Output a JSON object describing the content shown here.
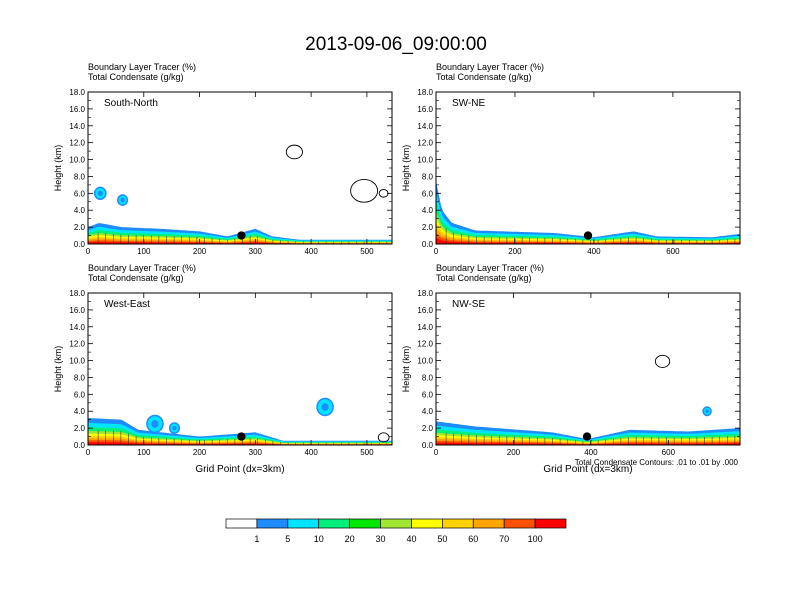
{
  "title": "2013-09-06_09:00:00",
  "footnote": "Total Condensate Contours: .01 to .01 by .000",
  "colorbar": {
    "colors": [
      "#ffffff",
      "#1e8cff",
      "#00e5ff",
      "#00f07c",
      "#00e600",
      "#a0e632",
      "#ffff00",
      "#ffd200",
      "#ffa500",
      "#ff5000",
      "#ff0000"
    ],
    "labels": [
      "1",
      "5",
      "10",
      "20",
      "30",
      "40",
      "50",
      "60",
      "70",
      "100"
    ]
  },
  "chart_data": [
    {
      "type": "contour",
      "panel_label": "South-North",
      "subtitle_1": "Boundary Layer Tracer   (%)",
      "subtitle_2": "Total Condensate   (g/kg)",
      "ylabel": "Height (km)",
      "xlabel": "",
      "xlim": [
        0,
        545
      ],
      "xticks": [
        0,
        100,
        200,
        300,
        400,
        500
      ],
      "ylim": [
        0,
        18
      ],
      "yticks": [
        "0.0",
        "2.0",
        "4.0",
        "6.0",
        "8.0",
        "10.0",
        "12.0",
        "14.0",
        "16.0",
        "18.0"
      ],
      "marker_point": [
        275,
        1.0
      ],
      "profile": [
        [
          0,
          2.0
        ],
        [
          20,
          2.5
        ],
        [
          60,
          2.0
        ],
        [
          130,
          1.8
        ],
        [
          200,
          1.5
        ],
        [
          250,
          0.9
        ],
        [
          300,
          1.8
        ],
        [
          330,
          0.9
        ],
        [
          380,
          0.5
        ],
        [
          545,
          0.5
        ]
      ],
      "blobs": [
        [
          22,
          6.0,
          0.7
        ],
        [
          62,
          5.2,
          0.6
        ]
      ],
      "contours": [
        [
          370,
          10.9,
          0.9
        ],
        [
          495,
          6.3,
          1.5
        ],
        [
          530,
          6.0,
          0.5
        ]
      ]
    },
    {
      "type": "contour",
      "panel_label": "SW-NE",
      "subtitle_1": "Boundary Layer Tracer   (%)",
      "subtitle_2": "Total Condensate   (g/kg)",
      "ylabel": "Height (km)",
      "xlabel": "",
      "xlim": [
        0,
        770
      ],
      "xticks": [
        0,
        200,
        400,
        600
      ],
      "ylim": [
        0,
        18
      ],
      "yticks": [
        "0.0",
        "2.0",
        "4.0",
        "6.0",
        "8.0",
        "10.0",
        "12.0",
        "14.0",
        "16.0",
        "18.0"
      ],
      "marker_point": [
        385,
        1.0
      ],
      "profile": [
        [
          0,
          7.5
        ],
        [
          15,
          4.0
        ],
        [
          40,
          2.5
        ],
        [
          100,
          1.6
        ],
        [
          300,
          1.3
        ],
        [
          400,
          0.8
        ],
        [
          500,
          1.5
        ],
        [
          560,
          0.9
        ],
        [
          700,
          0.8
        ],
        [
          770,
          1.2
        ]
      ],
      "blobs": [],
      "contours": []
    },
    {
      "type": "contour",
      "panel_label": "West-East",
      "subtitle_1": "Boundary Layer Tracer   (%)",
      "subtitle_2": "Total Condensate   (g/kg)",
      "ylabel": "Height (km)",
      "xlabel": "Grid Point (dx=3km)",
      "xlim": [
        0,
        545
      ],
      "xticks": [
        0,
        100,
        200,
        300,
        400,
        500
      ],
      "ylim": [
        0,
        18
      ],
      "yticks": [
        "0.0",
        "2.0",
        "4.0",
        "6.0",
        "8.0",
        "10.0",
        "12.0",
        "14.0",
        "16.0",
        "18.0"
      ],
      "marker_point": [
        275,
        1.0
      ],
      "profile": [
        [
          0,
          3.2
        ],
        [
          60,
          3.0
        ],
        [
          90,
          1.8
        ],
        [
          200,
          1.0
        ],
        [
          300,
          1.5
        ],
        [
          350,
          0.5
        ],
        [
          545,
          0.5
        ]
      ],
      "blobs": [
        [
          120,
          2.5,
          1.0
        ],
        [
          155,
          2.0,
          0.6
        ],
        [
          425,
          4.5,
          1.0
        ]
      ],
      "contours": [
        [
          530,
          0.9,
          0.6
        ]
      ]
    },
    {
      "type": "contour",
      "panel_label": "NW-SE",
      "subtitle_1": "Boundary Layer Tracer   (%)",
      "subtitle_2": "Total Condensate   (g/kg)",
      "ylabel": "Height (km)",
      "xlabel": "Grid Point (dx=3km)",
      "xlim": [
        0,
        785
      ],
      "xticks": [
        0,
        200,
        400,
        600
      ],
      "ylim": [
        0,
        18
      ],
      "yticks": [
        "0.0",
        "2.0",
        "4.0",
        "6.0",
        "8.0",
        "10.0",
        "12.0",
        "14.0",
        "16.0",
        "18.0"
      ],
      "marker_point": [
        390,
        1.0
      ],
      "profile": [
        [
          0,
          2.8
        ],
        [
          100,
          2.2
        ],
        [
          300,
          1.5
        ],
        [
          390,
          0.7
        ],
        [
          500,
          1.8
        ],
        [
          650,
          1.6
        ],
        [
          785,
          2.0
        ]
      ],
      "blobs": [
        [
          700,
          4.0,
          0.5
        ]
      ],
      "contours": [
        [
          585,
          9.9,
          0.8
        ]
      ]
    }
  ]
}
